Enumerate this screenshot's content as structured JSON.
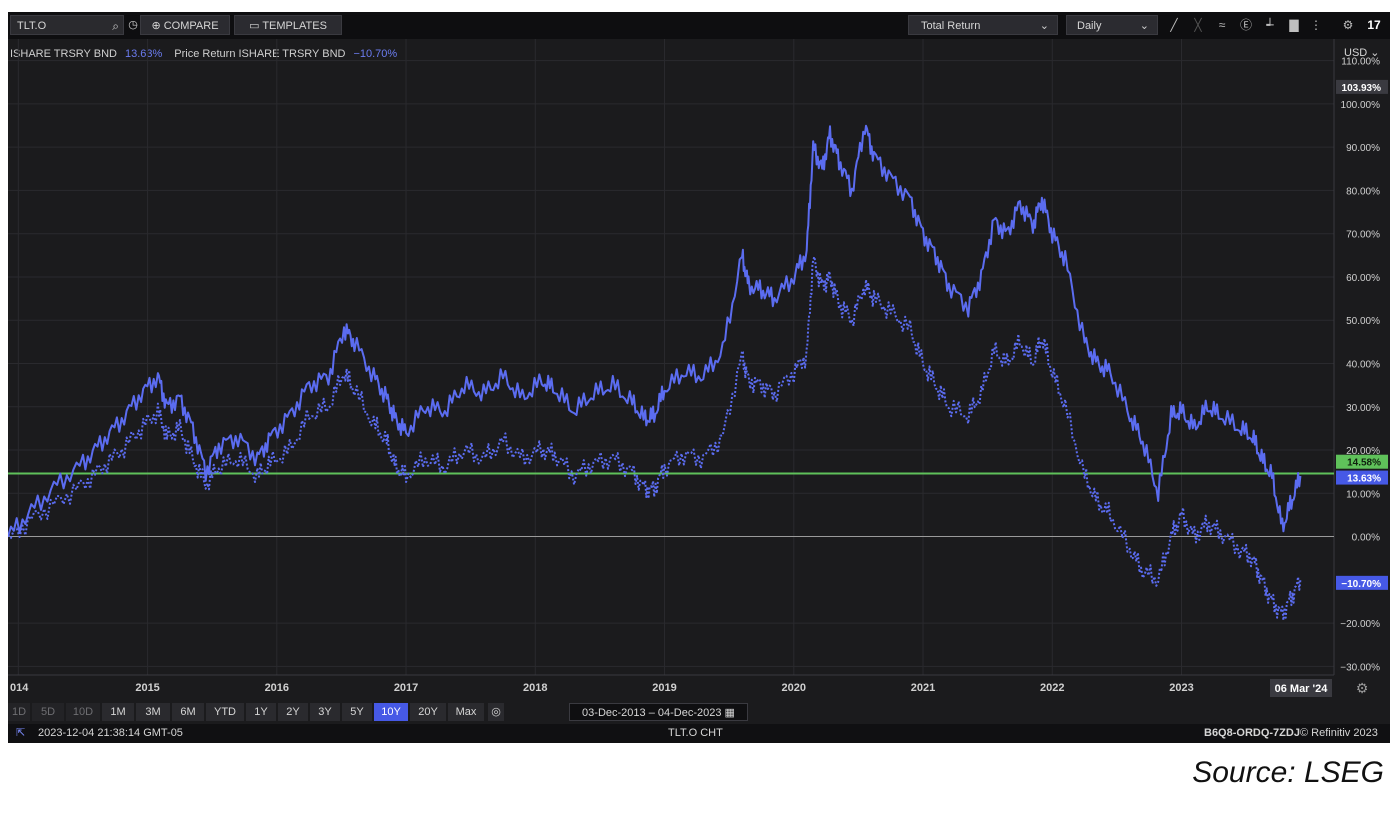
{
  "toolbar": {
    "ticker": "TLT.O",
    "compare_label": "COMPARE",
    "templates_label": "TEMPLATES",
    "return_type": "Total Return",
    "interval": "Daily"
  },
  "legend": {
    "series1_name": "ISHARE TRSRY BND",
    "series1_value": "13.63%",
    "series2_name": "Price Return ISHARE TRSRY BND",
    "series2_value": "−10.70%"
  },
  "currency": "USD",
  "price_tags": {
    "top": "103.93%",
    "green": "14.58%",
    "total": "13.63%",
    "price": "−10.70%",
    "date": "06 Mar '24"
  },
  "range_buttons": [
    "1D",
    "5D",
    "10D",
    "1M",
    "3M",
    "6M",
    "YTD",
    "1Y",
    "2Y",
    "3Y",
    "5Y",
    "10Y",
    "20Y",
    "Max"
  ],
  "range_active": "10Y",
  "date_range": "03-Dec-2013  –  04-Dec-2023",
  "status": {
    "timestamp": "2023-12-04 21:38:14 GMT-05",
    "center": "TLT.O CHT",
    "code": "B6Q8-ORDQ-7ZDJ",
    "copyright": "© Refinitiv 2023"
  },
  "source": "Source: LSEG",
  "colors": {
    "series": "#5b6cf0",
    "reference_line": "#5fc15a",
    "background": "#1b1b1d",
    "active": "#4659e6"
  },
  "chart_data": {
    "type": "line",
    "x_tick_labels": [
      "014",
      "2015",
      "2016",
      "2017",
      "2018",
      "2019",
      "2020",
      "2021",
      "2022",
      "2023"
    ],
    "y_tick_labels": [
      "110.00%",
      "100.00%",
      "90.00%",
      "80.00%",
      "70.00%",
      "60.00%",
      "50.00%",
      "40.00%",
      "30.00%",
      "20.00%",
      "10.00%",
      "0.00%",
      "−20.00%",
      "−30.00%"
    ],
    "ylim": [
      -32,
      115
    ],
    "xlim": [
      2013.92,
      2024.18
    ],
    "reference_line": 14.58,
    "zero_line": 0,
    "series": [
      {
        "name": "ISHARE TRSRY BND",
        "style": "solid",
        "x": [
          2013.92,
          2014.1,
          2014.3,
          2014.5,
          2014.65,
          2014.8,
          2014.95,
          2015.08,
          2015.15,
          2015.25,
          2015.35,
          2015.45,
          2015.55,
          2015.7,
          2015.85,
          2015.95,
          2016.1,
          2016.25,
          2016.4,
          2016.52,
          2016.6,
          2016.75,
          2016.85,
          2016.92,
          2017.0,
          2017.15,
          2017.3,
          2017.45,
          2017.6,
          2017.75,
          2017.9,
          2018.05,
          2018.15,
          2018.3,
          2018.45,
          2018.6,
          2018.75,
          2018.85,
          2018.92,
          2019.0,
          2019.15,
          2019.3,
          2019.45,
          2019.6,
          2019.65,
          2019.75,
          2019.85,
          2020.0,
          2020.1,
          2020.15,
          2020.22,
          2020.28,
          2020.35,
          2020.45,
          2020.55,
          2020.62,
          2020.75,
          2020.9,
          2021.0,
          2021.1,
          2021.2,
          2021.35,
          2021.45,
          2021.55,
          2021.65,
          2021.75,
          2021.85,
          2021.92,
          2022.0,
          2022.1,
          2022.25,
          2022.35,
          2022.45,
          2022.6,
          2022.7,
          2022.82,
          2022.92,
          2023.0,
          2023.1,
          2023.2,
          2023.3,
          2023.45,
          2023.55,
          2023.62,
          2023.7,
          2023.78,
          2023.85,
          2023.92
        ],
        "values": [
          0,
          6,
          12,
          17,
          22,
          27,
          33,
          37,
          30,
          32,
          25,
          15,
          21,
          23,
          18,
          23,
          28,
          35,
          37,
          48,
          45,
          37,
          32,
          27,
          24,
          30,
          29,
          35,
          33,
          37,
          32,
          36,
          34,
          29,
          33,
          35,
          31,
          27,
          28,
          34,
          38,
          37,
          43,
          65,
          58,
          57,
          55,
          60,
          66,
          90,
          85,
          93,
          87,
          80,
          95,
          88,
          83,
          78,
          70,
          65,
          58,
          53,
          60,
          73,
          70,
          77,
          72,
          78,
          70,
          64,
          45,
          40,
          38,
          28,
          22,
          10,
          28,
          29,
          25,
          30,
          28,
          25,
          23,
          18,
          14,
          2,
          8,
          14
        ]
      },
      {
        "name": "Price Return ISHARE TRSRY BND",
        "style": "dotted",
        "x": [
          2013.92,
          2014.1,
          2014.3,
          2014.5,
          2014.65,
          2014.8,
          2014.95,
          2015.08,
          2015.15,
          2015.25,
          2015.35,
          2015.45,
          2015.55,
          2015.7,
          2015.85,
          2015.95,
          2016.1,
          2016.25,
          2016.4,
          2016.52,
          2016.6,
          2016.75,
          2016.85,
          2016.92,
          2017.0,
          2017.15,
          2017.3,
          2017.45,
          2017.6,
          2017.75,
          2017.9,
          2018.05,
          2018.15,
          2018.3,
          2018.45,
          2018.6,
          2018.75,
          2018.85,
          2018.92,
          2019.0,
          2019.15,
          2019.3,
          2019.45,
          2019.6,
          2019.65,
          2019.75,
          2019.85,
          2020.0,
          2020.1,
          2020.15,
          2020.22,
          2020.28,
          2020.35,
          2020.45,
          2020.55,
          2020.62,
          2020.75,
          2020.9,
          2021.0,
          2021.1,
          2021.2,
          2021.35,
          2021.45,
          2021.55,
          2021.65,
          2021.75,
          2021.85,
          2021.92,
          2022.0,
          2022.1,
          2022.25,
          2022.35,
          2022.45,
          2022.6,
          2022.7,
          2022.82,
          2022.92,
          2023.0,
          2023.1,
          2023.2,
          2023.3,
          2023.45,
          2023.55,
          2023.62,
          2023.7,
          2023.78,
          2023.85,
          2023.92
        ],
        "values": [
          -1,
          4,
          8,
          12,
          16,
          20,
          25,
          29,
          23,
          25,
          18,
          12,
          16,
          18,
          14,
          17,
          20,
          28,
          30,
          38,
          34,
          26,
          22,
          16,
          14,
          18,
          16,
          20,
          18,
          22,
          18,
          20,
          19,
          14,
          17,
          18,
          15,
          11,
          11,
          16,
          19,
          18,
          23,
          42,
          36,
          35,
          33,
          38,
          42,
          64,
          58,
          60,
          54,
          50,
          58,
          55,
          52,
          48,
          40,
          35,
          30,
          28,
          33,
          43,
          40,
          45,
          40,
          46,
          38,
          30,
          14,
          8,
          5,
          -3,
          -8,
          -10,
          0,
          5,
          0,
          3,
          1,
          -3,
          -5,
          -10,
          -15,
          -18,
          -14,
          -10
        ]
      }
    ]
  }
}
